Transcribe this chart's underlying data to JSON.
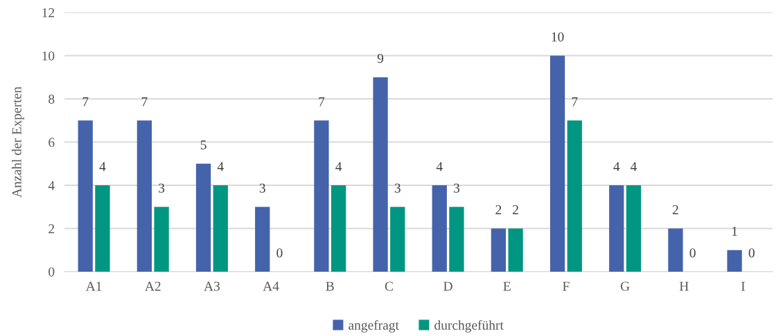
{
  "chart_data": {
    "type": "bar",
    "ylabel": "Anzahl der Experten",
    "categories": [
      "A1",
      "A2",
      "A3",
      "A4",
      "B",
      "C",
      "D",
      "E",
      "F",
      "G",
      "H",
      "I"
    ],
    "series": [
      {
        "name": "angefragt",
        "color": "#4563aa",
        "values": [
          7,
          7,
          5,
          3,
          7,
          9,
          4,
          2,
          10,
          4,
          2,
          1
        ]
      },
      {
        "name": "durchgeführt",
        "color": "#009681",
        "values": [
          4,
          3,
          4,
          0,
          4,
          3,
          3,
          2,
          7,
          4,
          0,
          0
        ]
      }
    ],
    "ylim": [
      0,
      12
    ],
    "yticks": [
      0,
      2,
      4,
      6,
      8,
      10,
      12
    ],
    "grid": "y",
    "legend": "bottom",
    "data_labels": true
  }
}
